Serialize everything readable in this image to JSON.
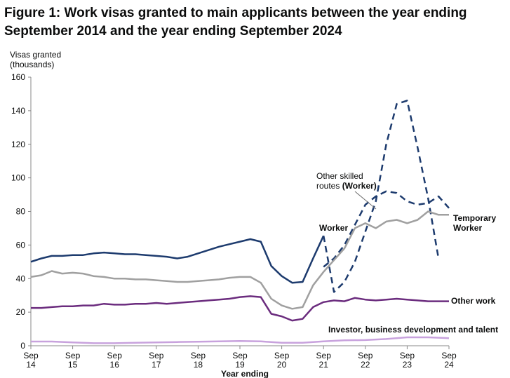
{
  "chart_data": {
    "type": "line",
    "title": "Figure 1: Work visas granted to main applicants between the year ending September 2014 and the year ending September 2024",
    "ylabel_line1": "Visas granted",
    "ylabel_line2": "(thousands)",
    "xlabel": "Year ending",
    "ylim": [
      0,
      160
    ],
    "yticks": [
      0,
      20,
      40,
      60,
      80,
      100,
      120,
      140,
      160
    ],
    "grid": false,
    "x_tick_labels": [
      {
        "x": 2014.75,
        "line1": "Sep",
        "line2": "14"
      },
      {
        "x": 2015.75,
        "line1": "Sep",
        "line2": "15"
      },
      {
        "x": 2016.75,
        "line1": "Sep",
        "line2": "16"
      },
      {
        "x": 2017.75,
        "line1": "Sep",
        "line2": "17"
      },
      {
        "x": 2018.75,
        "line1": "Sep",
        "line2": "18"
      },
      {
        "x": 2019.75,
        "line1": "Sep",
        "line2": "19"
      },
      {
        "x": 2020.75,
        "line1": "Sep",
        "line2": "20"
      },
      {
        "x": 2021.75,
        "line1": "Sep",
        "line2": "21"
      },
      {
        "x": 2022.75,
        "line1": "Sep",
        "line2": "22"
      },
      {
        "x": 2023.75,
        "line1": "Sep",
        "line2": "23"
      },
      {
        "x": 2024.75,
        "line1": "Sep",
        "line2": "24"
      }
    ],
    "xlim": [
      2014.75,
      2024.75
    ],
    "annotations": {
      "worker": "Worker",
      "other_skilled_line1": "Other skilled",
      "other_skilled_line2_plain": "routes ",
      "other_skilled_line2_bold": "(Worker)",
      "temporary_line1": "Temporary",
      "temporary_line2": "Worker",
      "other_work": "Other work",
      "investor": "Investor, business development and talent"
    },
    "series": [
      {
        "key": "worker",
        "color": "#1d3b6e",
        "dash": false,
        "points": [
          [
            2014.75,
            50
          ],
          [
            2015.0,
            52
          ],
          [
            2015.25,
            53.5
          ],
          [
            2015.5,
            53.5
          ],
          [
            2015.75,
            54
          ],
          [
            2016.0,
            54
          ],
          [
            2016.25,
            55
          ],
          [
            2016.5,
            55.5
          ],
          [
            2016.75,
            55
          ],
          [
            2017.0,
            54.5
          ],
          [
            2017.25,
            54.5
          ],
          [
            2017.5,
            54
          ],
          [
            2017.75,
            53.5
          ],
          [
            2018.0,
            53
          ],
          [
            2018.25,
            52
          ],
          [
            2018.5,
            53
          ],
          [
            2018.75,
            55
          ],
          [
            2019.0,
            57
          ],
          [
            2019.25,
            59
          ],
          [
            2019.5,
            60.5
          ],
          [
            2019.75,
            62
          ],
          [
            2020.0,
            63.5
          ],
          [
            2020.25,
            62
          ],
          [
            2020.5,
            47.5
          ],
          [
            2020.75,
            41.5
          ],
          [
            2021.0,
            37.5
          ],
          [
            2021.25,
            38
          ],
          [
            2021.5,
            52
          ],
          [
            2021.75,
            65.5
          ]
        ]
      },
      {
        "key": "other_skilled",
        "color": "#1d3b6e",
        "dash": true,
        "points": [
          [
            2021.75,
            65.5
          ],
          [
            2022.0,
            32
          ],
          [
            2022.25,
            38
          ],
          [
            2022.5,
            50
          ],
          [
            2022.75,
            68
          ],
          [
            2023.0,
            86
          ],
          [
            2023.25,
            120
          ],
          [
            2023.5,
            144
          ],
          [
            2023.75,
            146
          ],
          [
            2024.0,
            118
          ],
          [
            2024.25,
            88
          ],
          [
            2024.5,
            52
          ]
        ]
      },
      {
        "key": "worker_dashed",
        "color": "#1d3b6e",
        "dash": true,
        "points": [
          [
            2021.75,
            47
          ],
          [
            2022.0,
            52
          ],
          [
            2022.25,
            60
          ],
          [
            2022.5,
            72
          ],
          [
            2022.75,
            84
          ],
          [
            2023.0,
            89
          ],
          [
            2023.25,
            92
          ],
          [
            2023.5,
            91
          ],
          [
            2023.75,
            86
          ],
          [
            2024.0,
            84
          ],
          [
            2024.25,
            85
          ],
          [
            2024.5,
            89
          ],
          [
            2024.75,
            82
          ]
        ]
      },
      {
        "key": "temporary",
        "color": "#a0a0a0",
        "dash": false,
        "points": [
          [
            2014.75,
            41
          ],
          [
            2015.0,
            42
          ],
          [
            2015.25,
            44.5
          ],
          [
            2015.5,
            43
          ],
          [
            2015.75,
            43.5
          ],
          [
            2016.0,
            43
          ],
          [
            2016.25,
            41.5
          ],
          [
            2016.5,
            41
          ],
          [
            2016.75,
            40
          ],
          [
            2017.0,
            40
          ],
          [
            2017.25,
            39.5
          ],
          [
            2017.5,
            39.5
          ],
          [
            2017.75,
            39
          ],
          [
            2018.0,
            38.5
          ],
          [
            2018.25,
            38
          ],
          [
            2018.5,
            38
          ],
          [
            2018.75,
            38.5
          ],
          [
            2019.0,
            39
          ],
          [
            2019.25,
            39.5
          ],
          [
            2019.5,
            40.5
          ],
          [
            2019.75,
            41
          ],
          [
            2020.0,
            41
          ],
          [
            2020.25,
            37.5
          ],
          [
            2020.5,
            28
          ],
          [
            2020.75,
            24
          ],
          [
            2021.0,
            22
          ],
          [
            2021.25,
            23
          ],
          [
            2021.5,
            36
          ],
          [
            2021.75,
            44
          ],
          [
            2022.0,
            51
          ],
          [
            2022.25,
            58
          ],
          [
            2022.5,
            70
          ],
          [
            2022.75,
            73
          ],
          [
            2023.0,
            70
          ],
          [
            2023.25,
            74
          ],
          [
            2023.5,
            75
          ],
          [
            2023.75,
            73
          ],
          [
            2024.0,
            75
          ],
          [
            2024.25,
            80
          ],
          [
            2024.5,
            78
          ],
          [
            2024.75,
            78
          ]
        ]
      },
      {
        "key": "other_work",
        "color": "#6b2c7e",
        "dash": false,
        "points": [
          [
            2014.75,
            22.5
          ],
          [
            2015.0,
            22.5
          ],
          [
            2015.25,
            23
          ],
          [
            2015.5,
            23.5
          ],
          [
            2015.75,
            23.5
          ],
          [
            2016.0,
            24
          ],
          [
            2016.25,
            24
          ],
          [
            2016.5,
            25
          ],
          [
            2016.75,
            24.5
          ],
          [
            2017.0,
            24.5
          ],
          [
            2017.25,
            25
          ],
          [
            2017.5,
            25
          ],
          [
            2017.75,
            25.5
          ],
          [
            2018.0,
            25
          ],
          [
            2018.25,
            25.5
          ],
          [
            2018.5,
            26
          ],
          [
            2018.75,
            26.5
          ],
          [
            2019.0,
            27
          ],
          [
            2019.25,
            27.5
          ],
          [
            2019.5,
            28
          ],
          [
            2019.75,
            29
          ],
          [
            2020.0,
            29.5
          ],
          [
            2020.25,
            29
          ],
          [
            2020.5,
            19
          ],
          [
            2020.75,
            17.5
          ],
          [
            2021.0,
            15
          ],
          [
            2021.25,
            16
          ],
          [
            2021.5,
            23
          ],
          [
            2021.75,
            26
          ],
          [
            2022.0,
            27
          ],
          [
            2022.25,
            26.5
          ],
          [
            2022.5,
            28.5
          ],
          [
            2022.75,
            27.5
          ],
          [
            2023.0,
            27
          ],
          [
            2023.25,
            27.5
          ],
          [
            2023.5,
            28
          ],
          [
            2023.75,
            27.5
          ],
          [
            2024.0,
            27
          ],
          [
            2024.25,
            26.5
          ],
          [
            2024.5,
            26.5
          ],
          [
            2024.75,
            26.5
          ]
        ]
      },
      {
        "key": "investor",
        "color": "#c8a2dd",
        "dash": false,
        "points": [
          [
            2014.75,
            2.5
          ],
          [
            2015.25,
            2.5
          ],
          [
            2015.75,
            2
          ],
          [
            2016.25,
            1.5
          ],
          [
            2016.75,
            1.5
          ],
          [
            2017.25,
            1.8
          ],
          [
            2017.75,
            2
          ],
          [
            2018.25,
            2.2
          ],
          [
            2018.75,
            2.4
          ],
          [
            2019.25,
            2.6
          ],
          [
            2019.75,
            2.8
          ],
          [
            2020.25,
            2.6
          ],
          [
            2020.75,
            1.8
          ],
          [
            2021.25,
            1.8
          ],
          [
            2021.75,
            2.6
          ],
          [
            2022.25,
            3.2
          ],
          [
            2022.75,
            3.4
          ],
          [
            2023.25,
            4
          ],
          [
            2023.75,
            5
          ],
          [
            2024.25,
            5
          ],
          [
            2024.75,
            4.5
          ]
        ]
      }
    ]
  }
}
